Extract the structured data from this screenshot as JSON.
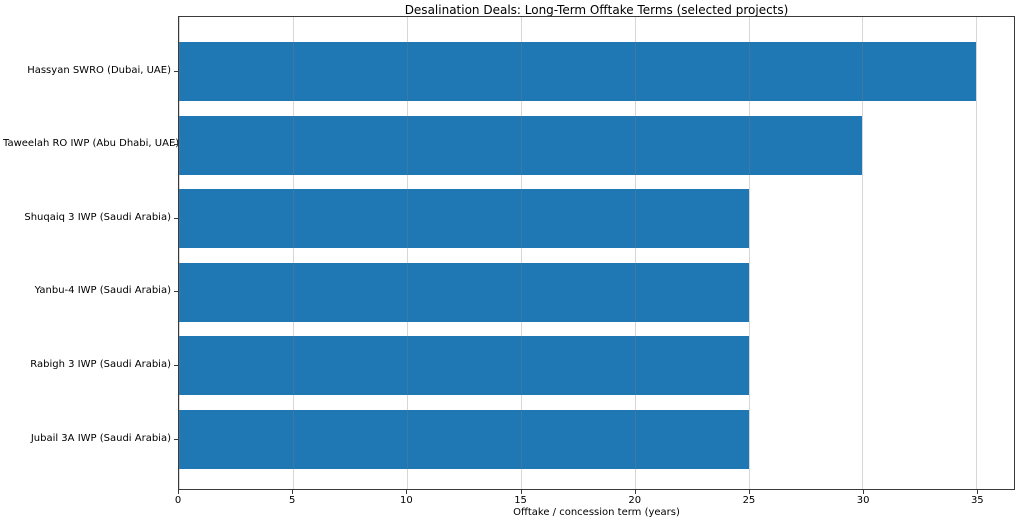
{
  "chart_data": {
    "type": "bar",
    "orientation": "horizontal",
    "title": "Desalination Deals: Long-Term Offtake Terms (selected projects)",
    "categories": [
      "Hassyan SWRO (Dubai, UAE)",
      "Taweelah RO IWP (Abu Dhabi, UAE)",
      "Shuqaiq 3 IWP (Saudi Arabia)",
      "Yanbu-4 IWP (Saudi Arabia)",
      "Rabigh 3 IWP (Saudi Arabia)",
      "Jubail 3A IWP (Saudi Arabia)"
    ],
    "values": [
      35,
      30,
      25,
      25,
      25,
      25
    ],
    "xlabel": "Offtake / concession term (years)",
    "ylabel": "",
    "xlim": [
      0,
      36.65
    ],
    "xticks": [
      0,
      5,
      10,
      15,
      20,
      25,
      30,
      35
    ],
    "grid": "x",
    "grid_above_bars": true,
    "legend": null,
    "bar_color": "#1f77b4",
    "background_color": "#ffffff",
    "spine_color": "#3a3a3a"
  }
}
